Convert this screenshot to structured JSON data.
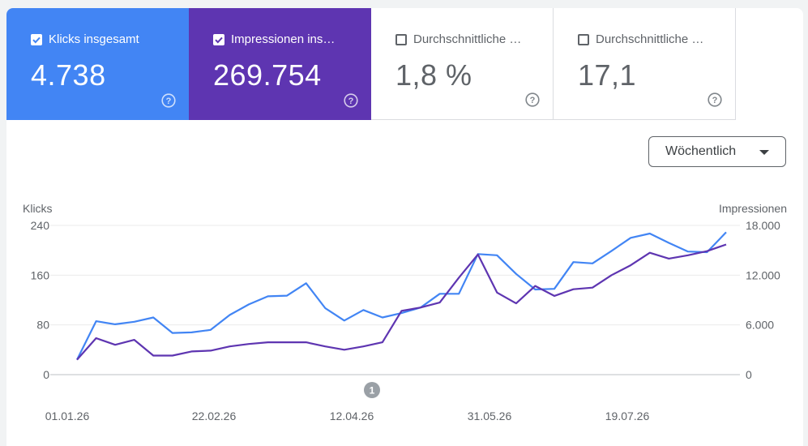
{
  "tiles": [
    {
      "label": "Klicks insgesamt",
      "value": "4.738",
      "checked": true,
      "color": "#4285f4"
    },
    {
      "label": "Impressionen ins…",
      "value": "269.754",
      "checked": true,
      "color": "#5e35b1"
    },
    {
      "label": "Durchschnittliche …",
      "value": "1,8 %",
      "checked": false
    },
    {
      "label": "Durchschnittliche …",
      "value": "17,1",
      "checked": false
    }
  ],
  "period_select": {
    "label": "Wöchentlich"
  },
  "annotation": {
    "label": "1"
  },
  "chart_data": {
    "type": "line",
    "left_axis": {
      "title": "Klicks",
      "ticks": [
        "240",
        "160",
        "80",
        "0"
      ],
      "range": [
        0,
        240
      ]
    },
    "right_axis": {
      "title": "Impressionen",
      "ticks": [
        "18.000",
        "12.000",
        "6.000",
        "0"
      ],
      "range": [
        0,
        18000
      ]
    },
    "x_tick_labels": [
      "01.01.26",
      "22.02.26",
      "12.04.26",
      "31.05.26",
      "19.07.26"
    ],
    "grid": true,
    "series": [
      {
        "color": "#4285f4",
        "axis": "left",
        "values": [
          24,
          86,
          81,
          85,
          92,
          67,
          68,
          72,
          96,
          113,
          126,
          127,
          147,
          107,
          87,
          104,
          92,
          99,
          108,
          130,
          130,
          194,
          192,
          162,
          137,
          138,
          181,
          179,
          199,
          220,
          227,
          212,
          198,
          197,
          229
        ]
      },
      {
        "color": "#5e35b1",
        "axis": "right",
        "values": [
          1800,
          4400,
          3600,
          4200,
          2300,
          2300,
          2800,
          2900,
          3400,
          3700,
          3900,
          3900,
          3900,
          3400,
          3000,
          3400,
          3900,
          7700,
          8100,
          8700,
          11700,
          14500,
          9900,
          8600,
          10700,
          9500,
          10300,
          10500,
          12000,
          13200,
          14700,
          14000,
          14400,
          14900,
          15700
        ]
      }
    ]
  }
}
